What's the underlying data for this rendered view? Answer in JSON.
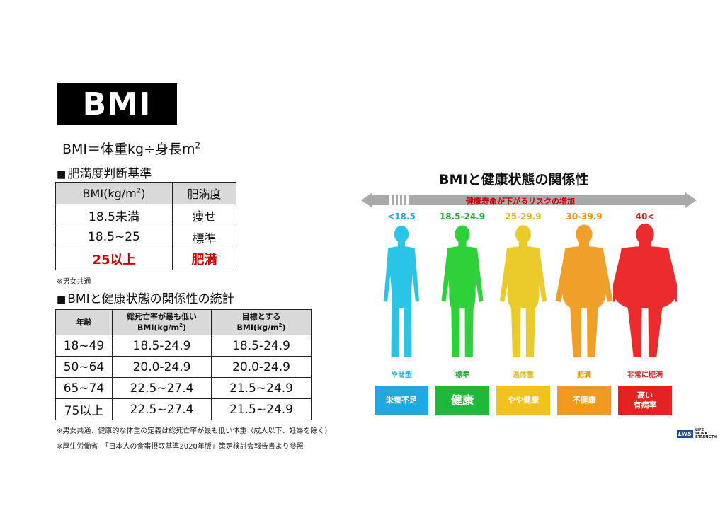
{
  "title": "BMI",
  "formula": {
    "text": "BMI＝体重kg÷身長m",
    "sup": "2"
  },
  "section1": {
    "marker": "■",
    "title": "肥満度判断基準"
  },
  "table1": {
    "header_bmi": "BMI(kg/m",
    "header_bmi_sup": "2",
    "header_bmi_end": ")",
    "header_level": "肥満度",
    "rows": [
      {
        "range": "18.5未満",
        "level": "痩せ"
      },
      {
        "range": "18.5~25",
        "level": "標準"
      },
      {
        "range": "25以上",
        "level": "肥満"
      }
    ]
  },
  "note1": "※男女共通",
  "section2": {
    "marker": "■",
    "title": "BMIと健康状態の関係性の統計"
  },
  "table2": {
    "h_age": "年齢",
    "h_lowest_1": "総死亡率が最も低い",
    "h_lowest_2": "BMI(kg/m",
    "h_target_1": "目標とする",
    "h_target_2": "BMI(kg/m",
    "h_sup": "2",
    "h_close": ")",
    "rows": [
      {
        "age": "18~49",
        "lowest": "18.5-24.9",
        "target": "18.5-24.9"
      },
      {
        "age": "50~64",
        "lowest": "20.0-24.9",
        "target": "20.0-24.9"
      },
      {
        "age": "65~74",
        "lowest": "22.5~27.4",
        "target": "21.5~24.9"
      },
      {
        "age": "75以上",
        "lowest": "22.5~27.4",
        "target": "21.5~24.9"
      }
    ]
  },
  "note2": "※男女共通、健康的な体重の定義は総死亡率が最も低い体重（成人以下、妊婦を除く）",
  "note3": "※厚生労働省　「日本人の食事摂取基準2020年版」策定検討会報告書より参照",
  "graphic": {
    "title": "BMIと健康状態の関係性",
    "arrow_text": "健康寿命が下がるリスクの増加",
    "categories": [
      {
        "range": "<18.5",
        "under": "やせ型",
        "status": "栄養不足",
        "color": "#29c4e6",
        "status_color": "#20a8e0",
        "range_color": "#1fa3d8"
      },
      {
        "range": "18.5-24.9",
        "under": "標準",
        "status": "健康",
        "color": "#2fd13a",
        "status_color": "#1fb83a",
        "range_color": "#1da834"
      },
      {
        "range": "25-29.9",
        "under": "過体重",
        "status": "やや健康",
        "color": "#ebcb2c",
        "status_color": "#f2c21d",
        "range_color": "#e0b51a"
      },
      {
        "range": "30-39.9",
        "under": "肥満",
        "status": "不健康",
        "color": "#ef9f2a",
        "status_color": "#f29a1d",
        "range_color": "#e8901a"
      },
      {
        "range": "40<",
        "under": "非常に肥満",
        "status": "高い\n有病率",
        "color": "#ec2c2c",
        "status_color": "#e52222",
        "range_color": "#d81e1e"
      }
    ]
  },
  "logo": {
    "mark": "LWS",
    "line1": "LIFE",
    "line2": "WORK",
    "line3": "STRENGTH"
  }
}
